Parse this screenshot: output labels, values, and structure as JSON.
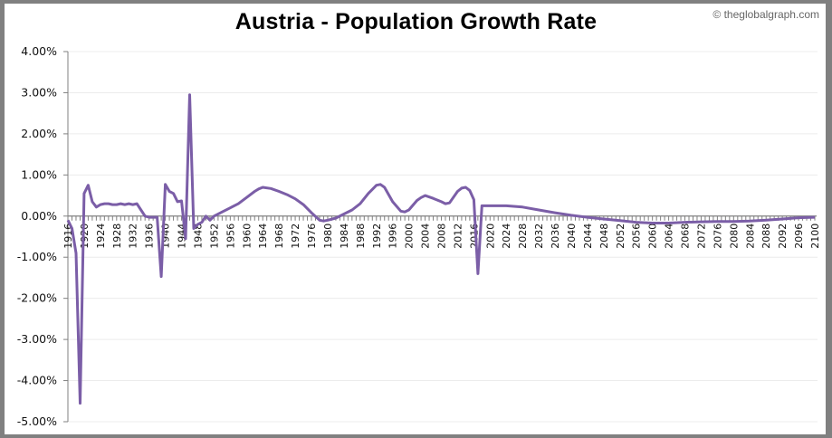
{
  "header": {
    "title": "Austria - Population Growth Rate",
    "credit": "© theglobalgraph.com"
  },
  "colors": {
    "line": "#7b5ea7",
    "grid": "#ececec",
    "axis": "#808080",
    "frame": "#808080"
  },
  "chart_data": {
    "type": "line",
    "title": "Austria - Population Growth Rate",
    "xlabel": "",
    "ylabel": "",
    "ylim": [
      -5,
      4
    ],
    "xlim": [
      1916,
      2100
    ],
    "grid": true,
    "legend": null,
    "y_ticks": [
      "4.00%",
      "3.00%",
      "2.00%",
      "1.00%",
      "0.00%",
      "-1.00%",
      "-2.00%",
      "-3.00%",
      "-4.00%",
      "-5.00%"
    ],
    "x_ticks": [
      "1916",
      "1920",
      "1924",
      "1928",
      "1932",
      "1936",
      "1940",
      "1944",
      "1948",
      "1952",
      "1956",
      "1960",
      "1964",
      "1968",
      "1972",
      "1976",
      "1980",
      "1984",
      "1988",
      "1992",
      "1996",
      "2000",
      "2004",
      "2008",
      "2012",
      "2016",
      "2020",
      "2024",
      "2028",
      "2032",
      "2036",
      "2040",
      "2044",
      "2048",
      "2052",
      "2056",
      "2060",
      "2064",
      "2068",
      "2072",
      "2076",
      "2080",
      "2084",
      "2088",
      "2092",
      "2096",
      "2100"
    ],
    "series": [
      {
        "name": "Population Growth Rate (%)",
        "x": [
          1916,
          1917,
          1918,
          1919,
          1920,
          1921,
          1922,
          1923,
          1924,
          1925,
          1926,
          1927,
          1928,
          1929,
          1930,
          1931,
          1932,
          1933,
          1934,
          1935,
          1936,
          1937,
          1938,
          1939,
          1940,
          1941,
          1942,
          1943,
          1944,
          1945,
          1946,
          1947,
          1948,
          1949,
          1950,
          1951,
          1952,
          1954,
          1956,
          1958,
          1960,
          1962,
          1963,
          1964,
          1966,
          1968,
          1970,
          1972,
          1974,
          1976,
          1978,
          1979,
          1980,
          1982,
          1984,
          1986,
          1988,
          1990,
          1992,
          1993,
          1994,
          1996,
          1998,
          1999,
          2000,
          2002,
          2003,
          2004,
          2006,
          2008,
          2009,
          2010,
          2012,
          2013,
          2014,
          2015,
          2016,
          2017,
          2018,
          2020,
          2024,
          2028,
          2032,
          2036,
          2040,
          2044,
          2048,
          2052,
          2056,
          2060,
          2064,
          2068,
          2072,
          2076,
          2080,
          2084,
          2088,
          2092,
          2096,
          2100
        ],
        "values": [
          -0.1,
          -0.3,
          -0.9,
          -4.55,
          0.55,
          0.75,
          0.35,
          0.22,
          0.28,
          0.3,
          0.3,
          0.28,
          0.28,
          0.3,
          0.28,
          0.3,
          0.28,
          0.3,
          0.15,
          0.0,
          -0.03,
          -0.03,
          -0.03,
          -1.47,
          0.77,
          0.6,
          0.55,
          0.35,
          0.37,
          -0.55,
          2.95,
          -0.3,
          -0.2,
          -0.15,
          0.0,
          -0.1,
          0.0,
          0.1,
          0.2,
          0.3,
          0.45,
          0.6,
          0.66,
          0.7,
          0.67,
          0.6,
          0.52,
          0.42,
          0.28,
          0.08,
          -0.1,
          -0.12,
          -0.1,
          -0.05,
          0.05,
          0.15,
          0.3,
          0.55,
          0.75,
          0.77,
          0.7,
          0.35,
          0.12,
          0.1,
          0.15,
          0.38,
          0.45,
          0.5,
          0.43,
          0.35,
          0.3,
          0.32,
          0.6,
          0.68,
          0.7,
          0.62,
          0.4,
          -1.4,
          0.25,
          0.25,
          0.25,
          0.22,
          0.15,
          0.08,
          0.02,
          -0.03,
          -0.07,
          -0.11,
          -0.15,
          -0.17,
          -0.17,
          -0.15,
          -0.14,
          -0.13,
          -0.13,
          -0.12,
          -0.1,
          -0.07,
          -0.04,
          -0.03
        ]
      }
    ]
  }
}
